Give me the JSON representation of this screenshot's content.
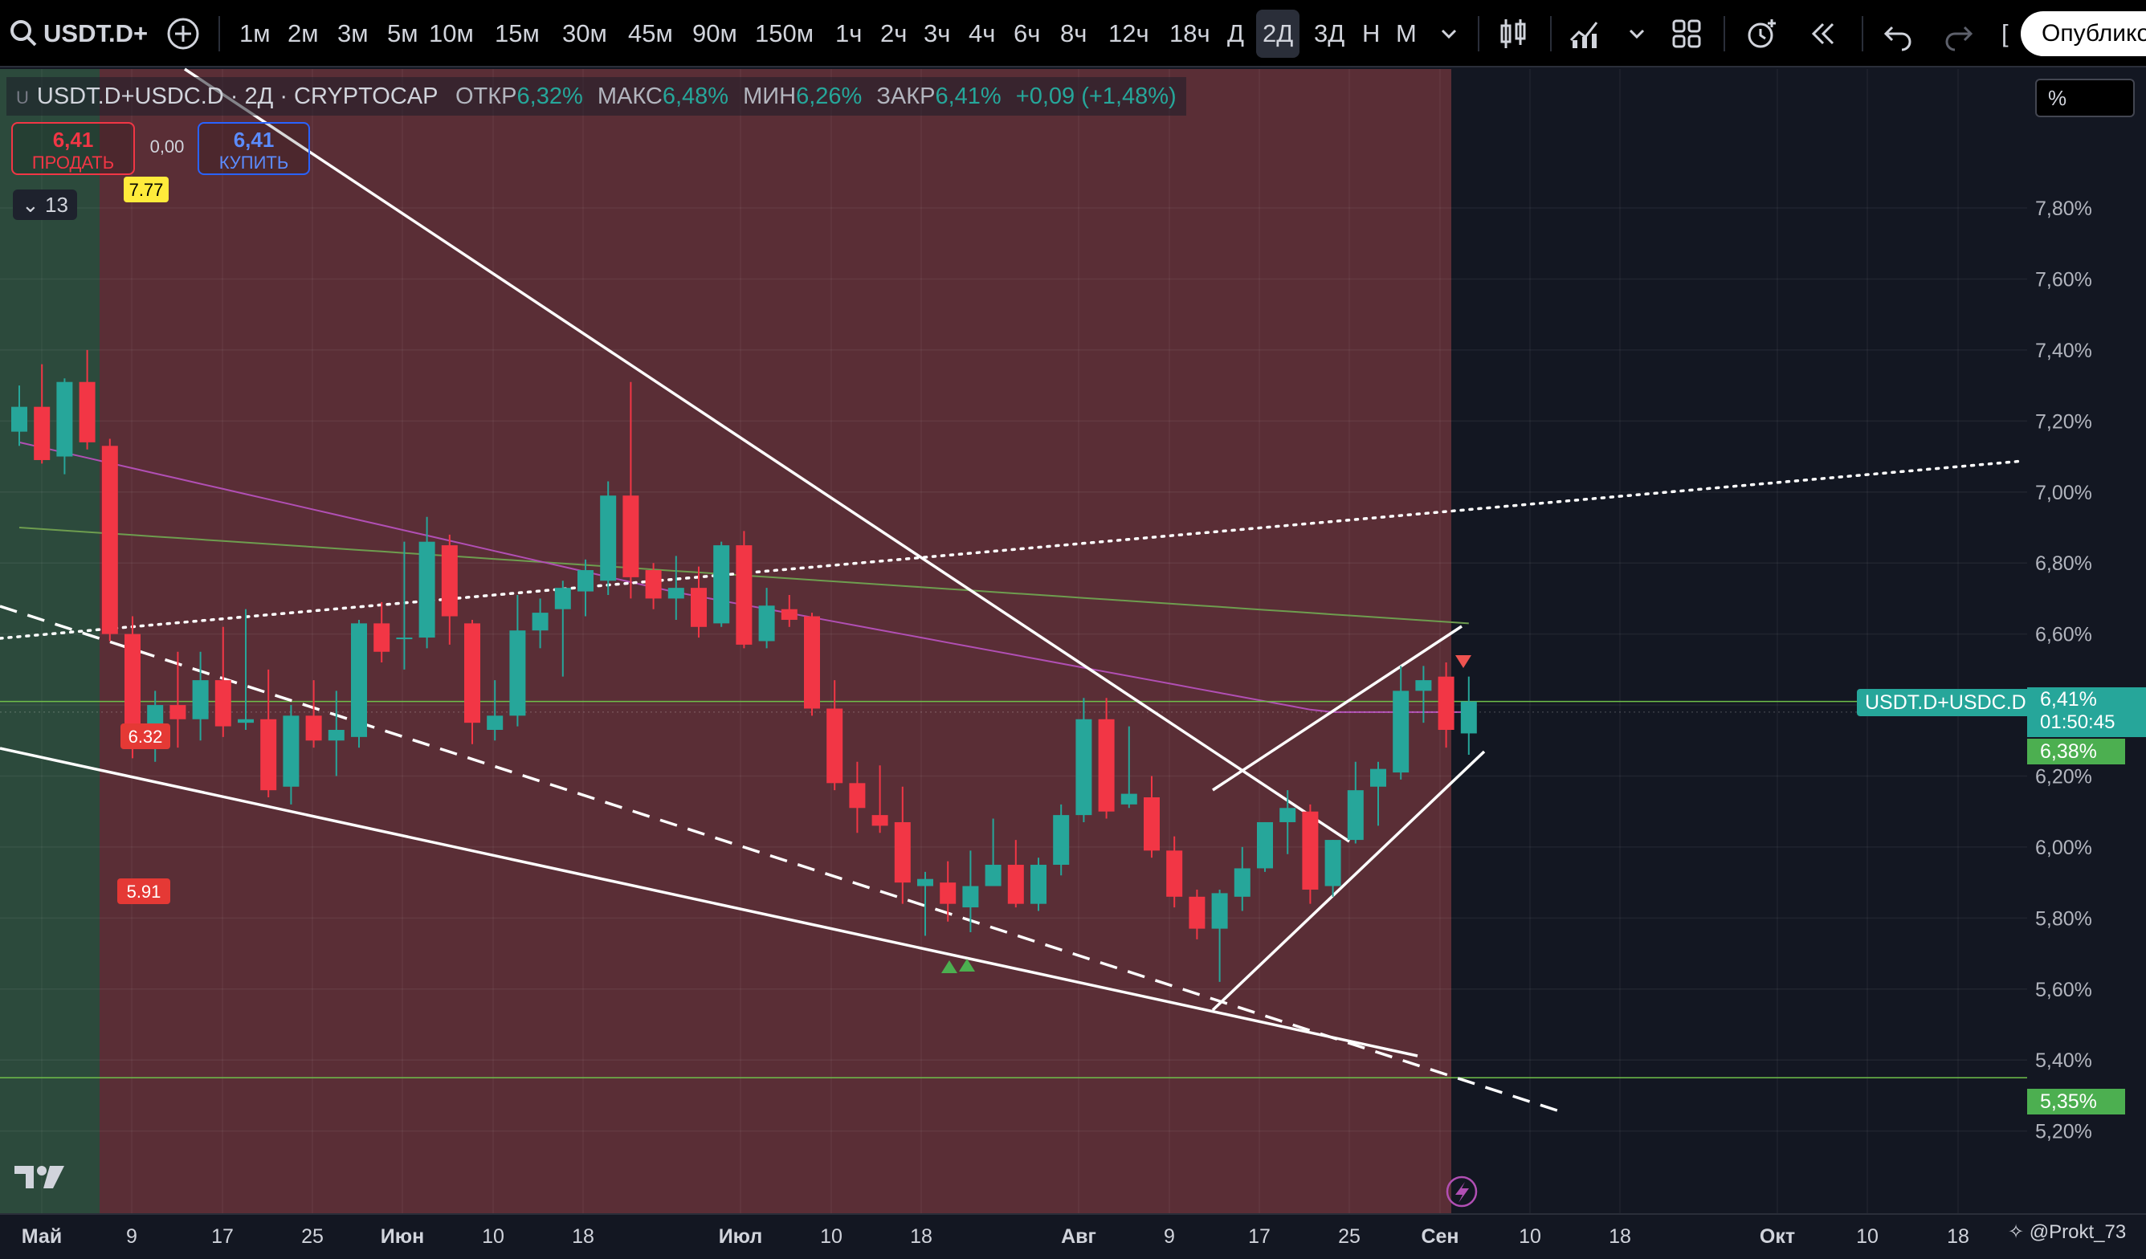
{
  "toolbar": {
    "symbol": "USDT.D+",
    "intervals": [
      "1м",
      "2м",
      "3м",
      "5м",
      "10м",
      "15м",
      "30м",
      "45м",
      "90м",
      "150м",
      "1ч",
      "2ч",
      "3ч",
      "4ч",
      "6ч",
      "8ч",
      "12ч",
      "18ч",
      "Д",
      "2Д",
      "3Д",
      "Н",
      "М"
    ],
    "selected_interval": "2Д",
    "publish_label": "Опублико"
  },
  "legend": {
    "symbol": "USDT.D+USDC.D · 2Д · CRYPTOCAP",
    "open_label": "ОТКР",
    "open": "6,32%",
    "high_label": "МАКС",
    "high": "6,48%",
    "low_label": "МИН",
    "low": "6,26%",
    "close_label": "ЗАКР",
    "close": "6,41%",
    "change": "+0,09 (+1,48%)"
  },
  "trade": {
    "sell_price": "6,41",
    "sell_label": "ПРОДАТЬ",
    "spread": "0,00",
    "buy_price": "6,41",
    "buy_label": "КУПИТЬ"
  },
  "indicators_toggle": "13",
  "axis_mode": "%",
  "price_tag": {
    "value": "6,41%",
    "countdown": "01:50:45",
    "symbol": "USDT.D+USDC.D"
  },
  "ma_tag": "6,38%",
  "support_tag": "5,35%",
  "watermark": "@Prokt_73",
  "colors": {
    "up": "#26a69a",
    "down": "#f23645",
    "ma_fast": "#b14fb4",
    "ma_slow": "#6e9d4f",
    "bg": "#131722",
    "red_zone": "#5a2e36",
    "green_zone": "#2c4a3c"
  },
  "chart_data": {
    "type": "candlestick",
    "unit": "%",
    "ylim": [
      5.12,
      7.92
    ],
    "y_ticks": [
      "7,80%",
      "7,60%",
      "7,40%",
      "7,20%",
      "7,00%",
      "6,80%",
      "6,60%",
      "6,40%",
      "6,20%",
      "6,00%",
      "5,80%",
      "5,60%",
      "5,40%",
      "5,20%"
    ],
    "y_tick_values": [
      7.8,
      7.6,
      7.4,
      7.2,
      7.0,
      6.8,
      6.6,
      6.4,
      6.2,
      6.0,
      5.8,
      5.6,
      5.4,
      5.2
    ],
    "x_labels": [
      "Май",
      "9",
      "17",
      "25",
      "Июн",
      "10",
      "18",
      "Июл",
      "10",
      "18",
      "Авг",
      "9",
      "17",
      "25",
      "Сен",
      "10",
      "18",
      "Окт",
      "10",
      "18"
    ],
    "candles": [
      {
        "o": 7.17,
        "h": 7.3,
        "l": 7.13,
        "c": 7.24
      },
      {
        "o": 7.24,
        "h": 7.36,
        "l": 7.08,
        "c": 7.09
      },
      {
        "o": 7.1,
        "h": 7.32,
        "l": 7.05,
        "c": 7.31
      },
      {
        "o": 7.31,
        "h": 7.4,
        "l": 7.12,
        "c": 7.14
      },
      {
        "o": 7.13,
        "h": 7.15,
        "l": 6.58,
        "c": 6.6
      },
      {
        "o": 6.6,
        "h": 6.65,
        "l": 6.25,
        "c": 6.28
      },
      {
        "o": 6.28,
        "h": 6.44,
        "l": 6.24,
        "c": 6.4
      },
      {
        "o": 6.4,
        "h": 6.55,
        "l": 6.28,
        "c": 6.36
      },
      {
        "o": 6.36,
        "h": 6.55,
        "l": 6.3,
        "c": 6.47
      },
      {
        "o": 6.47,
        "h": 6.62,
        "l": 6.31,
        "c": 6.34
      },
      {
        "o": 6.35,
        "h": 6.67,
        "l": 6.33,
        "c": 6.36
      },
      {
        "o": 6.36,
        "h": 6.5,
        "l": 6.14,
        "c": 6.16
      },
      {
        "o": 6.17,
        "h": 6.4,
        "l": 6.12,
        "c": 6.37
      },
      {
        "o": 6.37,
        "h": 6.47,
        "l": 6.28,
        "c": 6.3
      },
      {
        "o": 6.3,
        "h": 6.44,
        "l": 6.2,
        "c": 6.33
      },
      {
        "o": 6.31,
        "h": 6.64,
        "l": 6.28,
        "c": 6.63
      },
      {
        "o": 6.63,
        "h": 6.69,
        "l": 6.52,
        "c": 6.55
      },
      {
        "o": 6.59,
        "h": 6.86,
        "l": 6.5,
        "c": 6.59
      },
      {
        "o": 6.59,
        "h": 6.93,
        "l": 6.56,
        "c": 6.86
      },
      {
        "o": 6.85,
        "h": 6.88,
        "l": 6.57,
        "c": 6.65
      },
      {
        "o": 6.63,
        "h": 6.64,
        "l": 6.29,
        "c": 6.35
      },
      {
        "o": 6.33,
        "h": 6.47,
        "l": 6.3,
        "c": 6.37
      },
      {
        "o": 6.37,
        "h": 6.71,
        "l": 6.34,
        "c": 6.61
      },
      {
        "o": 6.61,
        "h": 6.7,
        "l": 6.56,
        "c": 6.66
      },
      {
        "o": 6.67,
        "h": 6.75,
        "l": 6.48,
        "c": 6.73
      },
      {
        "o": 6.72,
        "h": 6.81,
        "l": 6.65,
        "c": 6.78
      },
      {
        "o": 6.75,
        "h": 7.03,
        "l": 6.71,
        "c": 6.99
      },
      {
        "o": 6.99,
        "h": 7.31,
        "l": 6.7,
        "c": 6.76
      },
      {
        "o": 6.78,
        "h": 6.8,
        "l": 6.67,
        "c": 6.7
      },
      {
        "o": 6.7,
        "h": 6.82,
        "l": 6.64,
        "c": 6.73
      },
      {
        "o": 6.73,
        "h": 6.79,
        "l": 6.59,
        "c": 6.62
      },
      {
        "o": 6.63,
        "h": 6.86,
        "l": 6.62,
        "c": 6.85
      },
      {
        "o": 6.85,
        "h": 6.89,
        "l": 6.56,
        "c": 6.57
      },
      {
        "o": 6.58,
        "h": 6.73,
        "l": 6.56,
        "c": 6.68
      },
      {
        "o": 6.67,
        "h": 6.71,
        "l": 6.62,
        "c": 6.64
      },
      {
        "o": 6.65,
        "h": 6.66,
        "l": 6.37,
        "c": 6.39
      },
      {
        "o": 6.39,
        "h": 6.47,
        "l": 6.16,
        "c": 6.18
      },
      {
        "o": 6.18,
        "h": 6.24,
        "l": 6.04,
        "c": 6.11
      },
      {
        "o": 6.09,
        "h": 6.23,
        "l": 6.04,
        "c": 6.06
      },
      {
        "o": 6.07,
        "h": 6.17,
        "l": 5.84,
        "c": 5.9
      },
      {
        "o": 5.89,
        "h": 5.93,
        "l": 5.75,
        "c": 5.91
      },
      {
        "o": 5.9,
        "h": 5.96,
        "l": 5.79,
        "c": 5.84
      },
      {
        "o": 5.83,
        "h": 5.99,
        "l": 5.76,
        "c": 5.89
      },
      {
        "o": 5.89,
        "h": 6.08,
        "l": 5.89,
        "c": 5.95
      },
      {
        "o": 5.95,
        "h": 6.02,
        "l": 5.83,
        "c": 5.84
      },
      {
        "o": 5.84,
        "h": 5.97,
        "l": 5.82,
        "c": 5.95
      },
      {
        "o": 5.95,
        "h": 6.12,
        "l": 5.92,
        "c": 6.09
      },
      {
        "o": 6.09,
        "h": 6.42,
        "l": 6.07,
        "c": 6.36
      },
      {
        "o": 6.36,
        "h": 6.42,
        "l": 6.08,
        "c": 6.1
      },
      {
        "o": 6.12,
        "h": 6.34,
        "l": 6.11,
        "c": 6.15
      },
      {
        "o": 6.14,
        "h": 6.2,
        "l": 5.97,
        "c": 5.99
      },
      {
        "o": 5.99,
        "h": 6.03,
        "l": 5.83,
        "c": 5.86
      },
      {
        "o": 5.86,
        "h": 5.88,
        "l": 5.74,
        "c": 5.77
      },
      {
        "o": 5.77,
        "h": 5.88,
        "l": 5.62,
        "c": 5.87
      },
      {
        "o": 5.86,
        "h": 6.0,
        "l": 5.82,
        "c": 5.94
      },
      {
        "o": 5.94,
        "h": 6.07,
        "l": 5.93,
        "c": 6.07
      },
      {
        "o": 6.07,
        "h": 6.16,
        "l": 5.98,
        "c": 6.11
      },
      {
        "o": 6.1,
        "h": 6.12,
        "l": 5.84,
        "c": 5.88
      },
      {
        "o": 5.89,
        "h": 6.02,
        "l": 5.86,
        "c": 6.02
      },
      {
        "o": 6.02,
        "h": 6.24,
        "l": 6.01,
        "c": 6.16
      },
      {
        "o": 6.17,
        "h": 6.24,
        "l": 6.06,
        "c": 6.22
      },
      {
        "o": 6.21,
        "h": 6.51,
        "l": 6.19,
        "c": 6.44
      },
      {
        "o": 6.44,
        "h": 6.51,
        "l": 6.35,
        "c": 6.47
      },
      {
        "o": 6.48,
        "h": 6.52,
        "l": 6.28,
        "c": 6.33
      },
      {
        "o": 6.32,
        "h": 6.48,
        "l": 6.26,
        "c": 6.41
      }
    ]
  }
}
